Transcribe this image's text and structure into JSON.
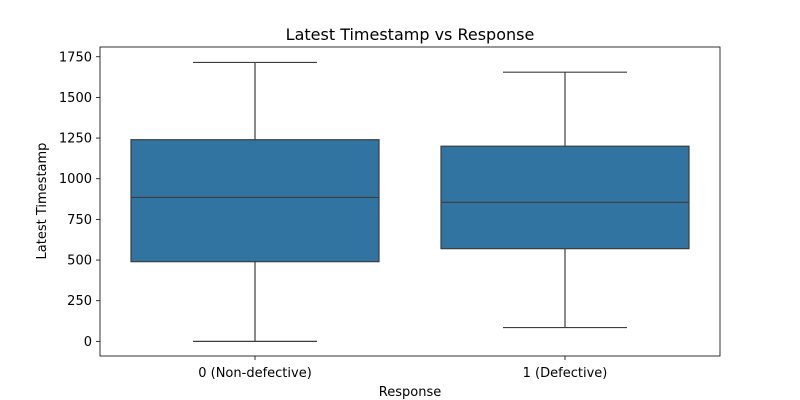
{
  "chart_data": {
    "type": "box",
    "title": "Latest Timestamp vs Response",
    "xlabel": "Response",
    "ylabel": "Latest Timestamp",
    "ylim": [
      -90,
      1810
    ],
    "yticks": [
      0,
      250,
      500,
      750,
      1000,
      1250,
      1500,
      1750
    ],
    "grid": false,
    "color": "#3274a1",
    "categories": [
      "0 (Non-defective)",
      "1 (Defective)"
    ],
    "boxes": [
      {
        "category": "0 (Non-defective)",
        "whisker_low": 0,
        "q1": 490,
        "median": 885,
        "q3": 1240,
        "whisker_high": 1715
      },
      {
        "category": "1 (Defective)",
        "whisker_low": 85,
        "q1": 570,
        "median": 855,
        "q3": 1200,
        "whisker_high": 1655
      }
    ]
  }
}
